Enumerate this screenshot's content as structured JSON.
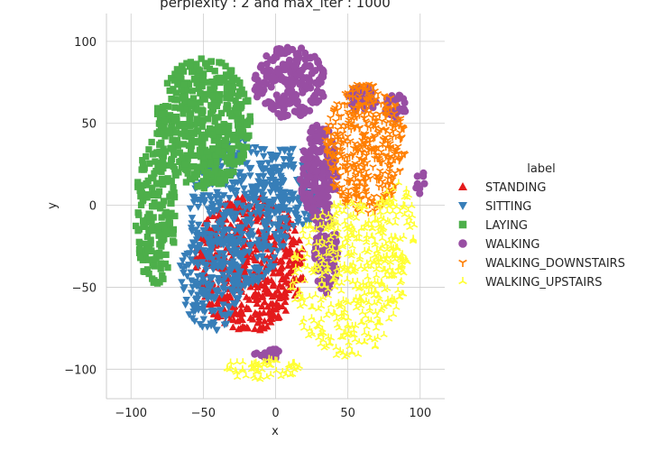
{
  "chart_data": {
    "type": "scatter",
    "title": "perplexity : 2 and max_iter : 1000",
    "xlabel": "x",
    "ylabel": "y",
    "xlim": [
      -117,
      117
    ],
    "ylim": [
      -118,
      117
    ],
    "xticks": [
      -100,
      -50,
      0,
      50,
      100
    ],
    "yticks": [
      -100,
      -50,
      0,
      50,
      100
    ],
    "tick_labels_x": [
      "−100",
      "−50",
      "0",
      "50",
      "100"
    ],
    "tick_labels_y": [
      "−100",
      "−50",
      "0",
      "50",
      "100"
    ],
    "grid": true,
    "legend": {
      "title": "label",
      "placement": "right"
    },
    "series": [
      {
        "name": "STANDING",
        "marker": "triangle-up",
        "color": "#e41a1c",
        "clusters": [
          {
            "cx": -18,
            "cy": -35,
            "rx": 38,
            "ry": 42,
            "n": 520
          }
        ]
      },
      {
        "name": "SITTING",
        "marker": "triangle-down",
        "color": "#377eb8",
        "clusters": [
          {
            "cx": -25,
            "cy": -5,
            "rx": 35,
            "ry": 45,
            "n": 420
          },
          {
            "cx": -45,
            "cy": -45,
            "rx": 22,
            "ry": 32,
            "n": 200
          },
          {
            "cx": 10,
            "cy": 10,
            "rx": 25,
            "ry": 25,
            "n": 140
          }
        ]
      },
      {
        "name": "LAYING",
        "marker": "square",
        "color": "#4daf4a",
        "clusters": [
          {
            "cx": -50,
            "cy": 50,
            "rx": 33,
            "ry": 40,
            "n": 450
          },
          {
            "cx": -83,
            "cy": -5,
            "rx": 14,
            "ry": 45,
            "n": 180
          }
        ]
      },
      {
        "name": "WALKING",
        "marker": "circle",
        "color": "#984ea3",
        "clusters": [
          {
            "cx": 10,
            "cy": 75,
            "rx": 25,
            "ry": 22,
            "n": 200
          },
          {
            "cx": 30,
            "cy": 20,
            "rx": 13,
            "ry": 30,
            "n": 160
          },
          {
            "cx": 35,
            "cy": -30,
            "rx": 8,
            "ry": 25,
            "n": 100
          },
          {
            "cx": 60,
            "cy": 65,
            "rx": 10,
            "ry": 8,
            "n": 40
          },
          {
            "cx": 83,
            "cy": 60,
            "rx": 8,
            "ry": 8,
            "n": 30
          },
          {
            "cx": -5,
            "cy": -90,
            "rx": 10,
            "ry": 4,
            "n": 22
          },
          {
            "cx": 100,
            "cy": 15,
            "rx": 4,
            "ry": 8,
            "n": 8
          }
        ]
      },
      {
        "name": "WALKING_DOWNSTAIRS",
        "marker": "tri-down",
        "color": "#ff7f00",
        "clusters": [
          {
            "cx": 62,
            "cy": 35,
            "rx": 28,
            "ry": 40,
            "n": 450
          }
        ]
      },
      {
        "name": "WALKING_UPSTAIRS",
        "marker": "tri-up",
        "color": "#ffff33",
        "clusters": [
          {
            "cx": 50,
            "cy": -45,
            "rx": 40,
            "ry": 48,
            "n": 430
          },
          {
            "cx": -10,
            "cy": -100,
            "rx": 28,
            "ry": 7,
            "n": 60
          },
          {
            "cx": 82,
            "cy": -15,
            "rx": 15,
            "ry": 30,
            "n": 80
          }
        ]
      }
    ]
  }
}
